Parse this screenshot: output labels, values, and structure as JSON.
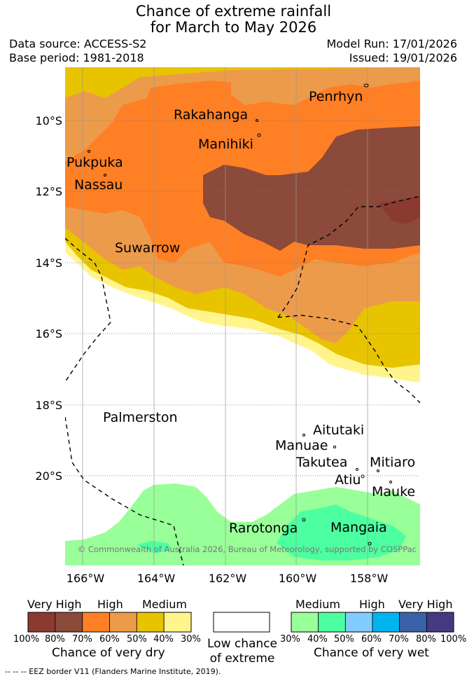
{
  "header": {
    "title_line1": "Chance of extreme rainfall",
    "title_line2": "for March to May 2026",
    "data_source": "Data source: ACCESS-S2",
    "base_period": "Base period: 1981-2018",
    "model_run": "Model Run: 17/01/2026",
    "issued": "Issued: 19/01/2026"
  },
  "map": {
    "lat_labels": [
      "10°S",
      "12°S",
      "14°S",
      "16°S",
      "18°S",
      "20°S"
    ],
    "lon_labels": [
      "166°W",
      "164°W",
      "162°W",
      "160°W",
      "158°W"
    ],
    "places": [
      "Penrhyn",
      "Rakahanga",
      "Manihiki",
      "Pukpuka",
      "Nassau",
      "Suwarrow",
      "Palmerston",
      "Aitutaki",
      "Manuae",
      "Takutea",
      "Mitiaro",
      "Atiu",
      "Mauke",
      "Rarotonga",
      "Mangaia"
    ],
    "copyright": "© Commonwealth of Australia 2026, Bureau of Meteorology, supported by COSPPac"
  },
  "legend": {
    "dry": {
      "levels": [
        "Very High",
        "High",
        "Medium"
      ],
      "ticks": [
        "100%",
        "80%",
        "70%",
        "60%",
        "50%",
        "40%",
        "30%"
      ],
      "colors": [
        "#8b3a30",
        "#8b4a3a",
        "#ff7f24",
        "#ec9b4b",
        "#e8c400",
        "#fff58c"
      ],
      "caption": "Chance of very dry"
    },
    "neutral": {
      "caption_line1": "Low chance",
      "caption_line2": "of extreme"
    },
    "wet": {
      "levels": [
        "Medium",
        "High",
        "Very High"
      ],
      "ticks": [
        "30%",
        "40%",
        "50%",
        "60%",
        "70%",
        "80%",
        "100%"
      ],
      "colors": [
        "#99ff99",
        "#4cffa0",
        "#80ccff",
        "#00b4f0",
        "#3a62a8",
        "#443a80"
      ],
      "caption": "Chance of very wet"
    }
  },
  "footer": {
    "eez_note": "--  --  -- EEZ border V11 (Flanders Marine Institute, 2019)."
  }
}
